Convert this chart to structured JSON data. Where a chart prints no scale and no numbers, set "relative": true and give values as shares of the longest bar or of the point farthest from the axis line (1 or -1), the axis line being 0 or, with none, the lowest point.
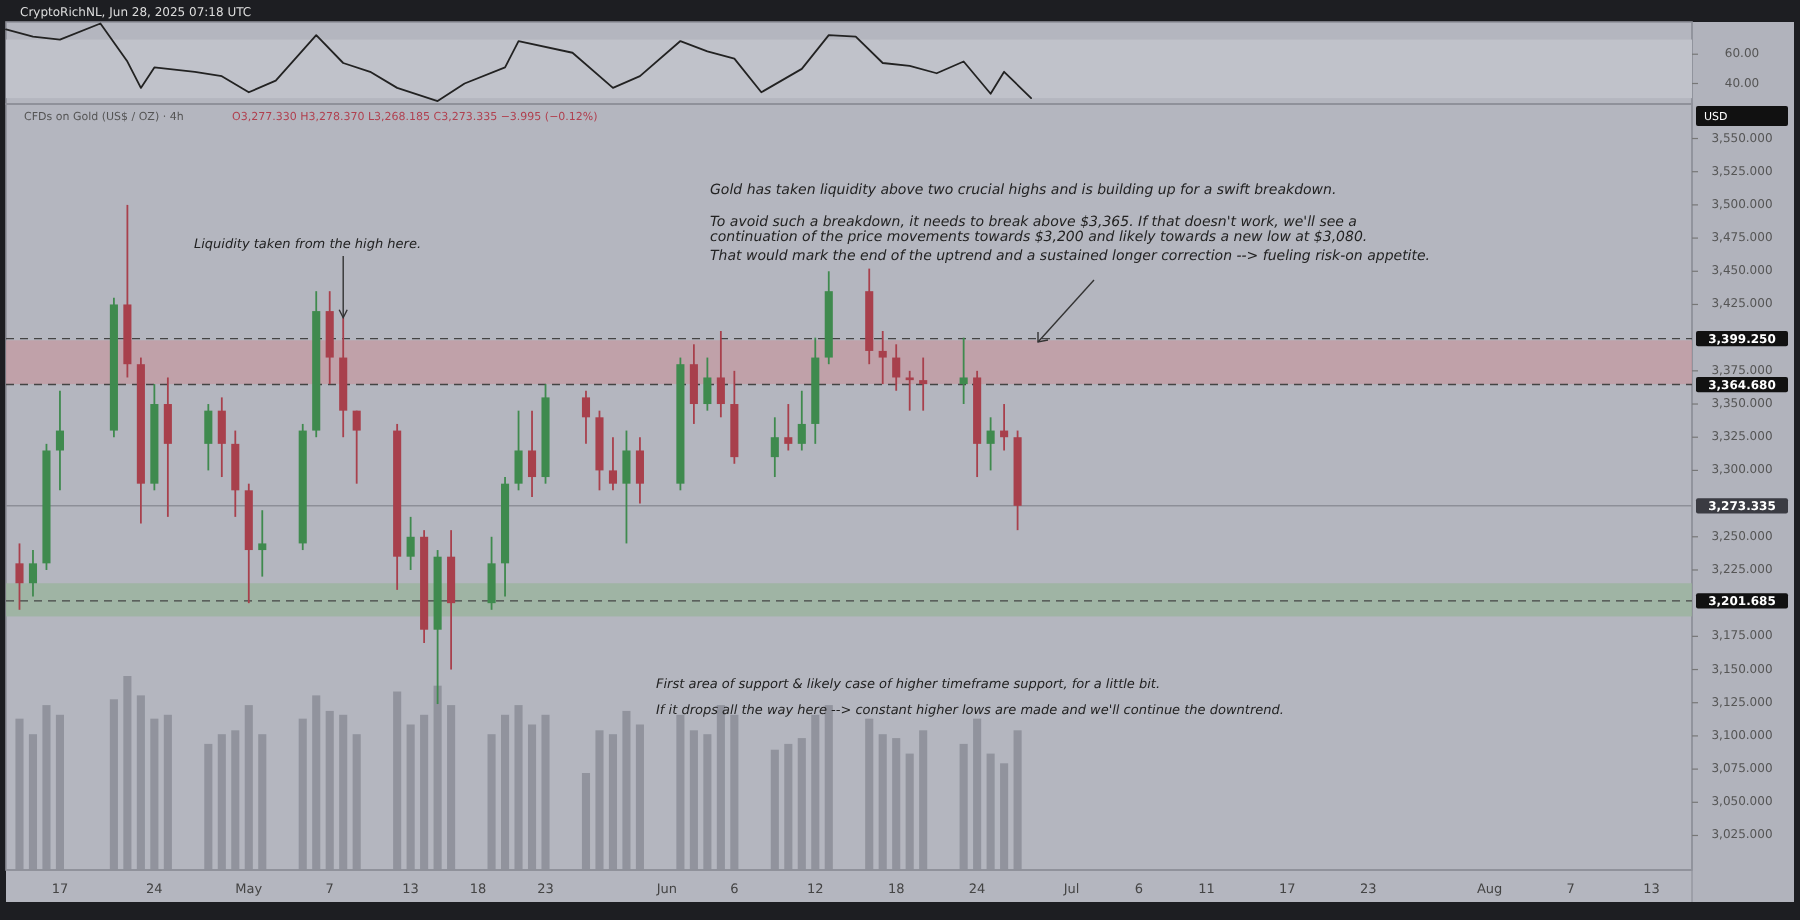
{
  "chart_data": [
    {
      "type": "line",
      "xlim": [
        "2025-04-13",
        "2025-08-16"
      ],
      "ylim": [
        26,
        82
      ],
      "yticks": [
        {
          "value": 40,
          "label": "40.00"
        },
        {
          "value": 60,
          "label": "60.00"
        }
      ],
      "tick_labels": "y",
      "bands": [
        {
          "axis": "y",
          "from": 30,
          "to": 70,
          "color": "#c0c2ca"
        }
      ],
      "series": [
        {
          "color": "#222222",
          "x": [
            "2025-04-13",
            "2025-04-15",
            "2025-04-17",
            "2025-04-20",
            "2025-04-22",
            "2025-04-23",
            "2025-04-24",
            "2025-04-27",
            "2025-04-29",
            "2025-05-01",
            "2025-05-03",
            "2025-05-06",
            "2025-05-08",
            "2025-05-10",
            "2025-05-12",
            "2025-05-15",
            "2025-05-17",
            "2025-05-20",
            "2025-05-21",
            "2025-05-25",
            "2025-05-28",
            "2025-05-30",
            "2025-06-02",
            "2025-06-04",
            "2025-06-06",
            "2025-06-08",
            "2025-06-11",
            "2025-06-13",
            "2025-06-15",
            "2025-06-17",
            "2025-06-19",
            "2025-06-21",
            "2025-06-23",
            "2025-06-25",
            "2025-06-26",
            "2025-06-28"
          ],
          "values": [
            77,
            72,
            70,
            81,
            55,
            37,
            51,
            48,
            45,
            34,
            42,
            73,
            54,
            48,
            37,
            28,
            40,
            51,
            69,
            61,
            37,
            45,
            69,
            62,
            57,
            34,
            50,
            73,
            72,
            54,
            52,
            47,
            55,
            33,
            48,
            30
          ]
        }
      ]
    },
    {
      "type": "candlestick",
      "title": "CFDs on Gold (US$ / OZ) · 4h",
      "subtitle": "O3,277.330 H3,278.370 L3,268.185 C3,273.335 −3.995 (−0.12%)",
      "ylabel": "USD",
      "xlim": [
        "2025-04-13",
        "2025-08-16"
      ],
      "ylim": [
        2999,
        3576
      ],
      "xticks": [
        {
          "value": "2025-04-17",
          "label": "17"
        },
        {
          "value": "2025-04-24",
          "label": "24"
        },
        {
          "value": "2025-05-01",
          "label": "May"
        },
        {
          "value": "2025-05-07",
          "label": "7"
        },
        {
          "value": "2025-05-13",
          "label": "13"
        },
        {
          "value": "2025-05-18",
          "label": "18"
        },
        {
          "value": "2025-05-23",
          "label": "23"
        },
        {
          "value": "2025-06-01",
          "label": "Jun"
        },
        {
          "value": "2025-06-06",
          "label": "6"
        },
        {
          "value": "2025-06-12",
          "label": "12"
        },
        {
          "value": "2025-06-18",
          "label": "18"
        },
        {
          "value": "2025-06-24",
          "label": "24"
        },
        {
          "value": "2025-07-01",
          "label": "Jul"
        },
        {
          "value": "2025-07-06",
          "label": "6"
        },
        {
          "value": "2025-07-11",
          "label": "11"
        },
        {
          "value": "2025-07-17",
          "label": "17"
        },
        {
          "value": "2025-07-23",
          "label": "23"
        },
        {
          "value": "2025-08-01",
          "label": "Aug"
        },
        {
          "value": "2025-08-07",
          "label": "7"
        },
        {
          "value": "2025-08-13",
          "label": "13"
        }
      ],
      "yticks": [
        {
          "value": 3025,
          "label": "3,025.000"
        },
        {
          "value": 3050,
          "label": "3,050.000"
        },
        {
          "value": 3075,
          "label": "3,075.000"
        },
        {
          "value": 3100,
          "label": "3,100.000"
        },
        {
          "value": 3125,
          "label": "3,125.000"
        },
        {
          "value": 3150,
          "label": "3,150.000"
        },
        {
          "value": 3175,
          "label": "3,175.000"
        },
        {
          "value": 3225,
          "label": "3,225.000"
        },
        {
          "value": 3250,
          "label": "3,250.000"
        },
        {
          "value": 3300,
          "label": "3,300.000"
        },
        {
          "value": 3325,
          "label": "3,325.000"
        },
        {
          "value": 3350,
          "label": "3,350.000"
        },
        {
          "value": 3375,
          "label": "3,375.000"
        },
        {
          "value": 3425,
          "label": "3,425.000"
        },
        {
          "value": 3450,
          "label": "3,450.000"
        },
        {
          "value": 3475,
          "label": "3,475.000"
        },
        {
          "value": 3500,
          "label": "3,500.000"
        },
        {
          "value": 3525,
          "label": "3,525.000"
        },
        {
          "value": 3550,
          "label": "3,550.000"
        }
      ],
      "ref_lines": [
        {
          "axis": "y",
          "value": 3399.25,
          "label": "3,399.250",
          "line_style": "dashed"
        },
        {
          "axis": "y",
          "value": 3364.68,
          "label": "3,364.680",
          "line_style": "dashed"
        },
        {
          "axis": "y",
          "value": 3273.335,
          "label": "3,273.335",
          "line_style": "solid"
        },
        {
          "axis": "y",
          "value": 3201.685,
          "label": "3,201.685",
          "line_style": "dashed"
        }
      ],
      "bands": [
        {
          "axis": "y",
          "from": 3365,
          "to": 3398,
          "color": "#c49aa2"
        },
        {
          "axis": "y",
          "from": 3190,
          "to": 3215,
          "color": "#98b39b"
        }
      ],
      "annotations": [
        "CryptoRichNL, Jun 28, 2025 07:18 UTC",
        {
          "text": "Liquidity taken from the high here.",
          "x": "2025-05-08",
          "y": 3415
        },
        "Gold has taken liquidity above two crucial highs and is building up for a swift breakdown.",
        "To avoid such a breakdown, it needs to break above $3,365. If that doesn't work, we'll see a continuation of the price movements towards $3,200 and likely towards a new low at $3,080.",
        "That would mark the end of the uptrend and a sustained longer correction --> fueling risk-on appetite.",
        "First area of support & likely case of higher timeframe support, for a little bit.",
        "If it drops all the way here --> constant higher lows are made and we'll continue the downtrend."
      ],
      "x": [
        "2025-04-14",
        "2025-04-15",
        "2025-04-16",
        "2025-04-17",
        "2025-04-21",
        "2025-04-22",
        "2025-04-23",
        "2025-04-24",
        "2025-04-25",
        "2025-04-28",
        "2025-04-29",
        "2025-04-30",
        "2025-05-01",
        "2025-05-02",
        "2025-05-05",
        "2025-05-06",
        "2025-05-07",
        "2025-05-08",
        "2025-05-09",
        "2025-05-12",
        "2025-05-13",
        "2025-05-14",
        "2025-05-15",
        "2025-05-16",
        "2025-05-19",
        "2025-05-20",
        "2025-05-21",
        "2025-05-22",
        "2025-05-23",
        "2025-05-26",
        "2025-05-27",
        "2025-05-28",
        "2025-05-29",
        "2025-05-30",
        "2025-06-02",
        "2025-06-03",
        "2025-06-04",
        "2025-06-05",
        "2025-06-06",
        "2025-06-09",
        "2025-06-10",
        "2025-06-11",
        "2025-06-12",
        "2025-06-13",
        "2025-06-16",
        "2025-06-17",
        "2025-06-18",
        "2025-06-19",
        "2025-06-20",
        "2025-06-23",
        "2025-06-24",
        "2025-06-25",
        "2025-06-26",
        "2025-06-27"
      ],
      "ohlc": [
        [
          3230,
          3245,
          3195,
          3215
        ],
        [
          3215,
          3240,
          3205,
          3230
        ],
        [
          3230,
          3320,
          3225,
          3315
        ],
        [
          3315,
          3360,
          3285,
          3330
        ],
        [
          3330,
          3430,
          3325,
          3425
        ],
        [
          3425,
          3500,
          3370,
          3380
        ],
        [
          3380,
          3385,
          3260,
          3290
        ],
        [
          3290,
          3365,
          3285,
          3350
        ],
        [
          3350,
          3370,
          3265,
          3320
        ],
        [
          3320,
          3350,
          3300,
          3345
        ],
        [
          3345,
          3355,
          3295,
          3320
        ],
        [
          3320,
          3330,
          3265,
          3285
        ],
        [
          3285,
          3290,
          3200,
          3240
        ],
        [
          3240,
          3270,
          3220,
          3245
        ],
        [
          3245,
          3335,
          3240,
          3330
        ],
        [
          3330,
          3435,
          3325,
          3420
        ],
        [
          3420,
          3435,
          3365,
          3385
        ],
        [
          3385,
          3415,
          3325,
          3345
        ],
        [
          3345,
          3345,
          3290,
          3330
        ],
        [
          3330,
          3335,
          3210,
          3235
        ],
        [
          3235,
          3265,
          3225,
          3250
        ],
        [
          3250,
          3255,
          3170,
          3180
        ],
        [
          3180,
          3240,
          3124,
          3235
        ],
        [
          3235,
          3255,
          3150,
          3200
        ],
        [
          3200,
          3250,
          3195,
          3230
        ],
        [
          3230,
          3295,
          3205,
          3290
        ],
        [
          3290,
          3345,
          3285,
          3315
        ],
        [
          3315,
          3345,
          3280,
          3295
        ],
        [
          3295,
          3365,
          3290,
          3355
        ],
        [
          3355,
          3360,
          3320,
          3340
        ],
        [
          3340,
          3345,
          3285,
          3300
        ],
        [
          3300,
          3325,
          3285,
          3290
        ],
        [
          3290,
          3330,
          3245,
          3315
        ],
        [
          3315,
          3325,
          3275,
          3290
        ],
        [
          3290,
          3385,
          3285,
          3380
        ],
        [
          3380,
          3395,
          3335,
          3350
        ],
        [
          3350,
          3385,
          3345,
          3370
        ],
        [
          3370,
          3405,
          3340,
          3350
        ],
        [
          3350,
          3375,
          3305,
          3310
        ],
        [
          3310,
          3340,
          3295,
          3325
        ],
        [
          3325,
          3350,
          3315,
          3320
        ],
        [
          3320,
          3360,
          3315,
          3335
        ],
        [
          3335,
          3400,
          3320,
          3385
        ],
        [
          3385,
          3450,
          3380,
          3435
        ],
        [
          3435,
          3452,
          3380,
          3390
        ],
        [
          3390,
          3405,
          3365,
          3385
        ],
        [
          3385,
          3395,
          3360,
          3370
        ],
        [
          3370,
          3375,
          3345,
          3368
        ],
        [
          3368,
          3385,
          3345,
          3365
        ],
        [
          3365,
          3400,
          3350,
          3370
        ],
        [
          3370,
          3375,
          3295,
          3320
        ],
        [
          3320,
          3340,
          3300,
          3330
        ],
        [
          3330,
          3350,
          3315,
          3325
        ],
        [
          3325,
          3330,
          3255,
          3273.335
        ]
      ],
      "colors": [
        "#a8404c",
        "#3f8a4e",
        "#3f8a4e",
        "#3f8a4e",
        "#3f8a4e",
        "#a8404c",
        "#a8404c",
        "#3f8a4e",
        "#a8404c",
        "#3f8a4e",
        "#a8404c",
        "#a8404c",
        "#a8404c",
        "#3f8a4e",
        "#3f8a4e",
        "#3f8a4e",
        "#a8404c",
        "#a8404c",
        "#a8404c",
        "#a8404c",
        "#3f8a4e",
        "#a8404c",
        "#3f8a4e",
        "#a8404c",
        "#3f8a4e",
        "#3f8a4e",
        "#3f8a4e",
        "#a8404c",
        "#3f8a4e",
        "#a8404c",
        "#a8404c",
        "#a8404c",
        "#3f8a4e",
        "#a8404c",
        "#3f8a4e",
        "#a8404c",
        "#3f8a4e",
        "#a8404c",
        "#a8404c",
        "#3f8a4e",
        "#a8404c",
        "#3f8a4e",
        "#3f8a4e",
        "#3f8a4e",
        "#a8404c",
        "#a8404c",
        "#a8404c",
        "#a8404c",
        "#a8404c",
        "#3f8a4e",
        "#a8404c",
        "#3f8a4e",
        "#a8404c",
        "#a8404c"
      ]
    },
    {
      "type": "bar",
      "relative": true,
      "tick_labels": false,
      "xlim": [
        "2025-04-13",
        "2025-08-16"
      ],
      "color": "#8b8d97",
      "x": [
        "2025-04-14",
        "2025-04-15",
        "2025-04-16",
        "2025-04-17",
        "2025-04-21",
        "2025-04-22",
        "2025-04-23",
        "2025-04-24",
        "2025-04-25",
        "2025-04-28",
        "2025-04-29",
        "2025-04-30",
        "2025-05-01",
        "2025-05-02",
        "2025-05-05",
        "2025-05-06",
        "2025-05-07",
        "2025-05-08",
        "2025-05-09",
        "2025-05-12",
        "2025-05-13",
        "2025-05-14",
        "2025-05-15",
        "2025-05-16",
        "2025-05-19",
        "2025-05-20",
        "2025-05-21",
        "2025-05-22",
        "2025-05-23",
        "2025-05-26",
        "2025-05-27",
        "2025-05-28",
        "2025-05-29",
        "2025-05-30",
        "2025-06-02",
        "2025-06-03",
        "2025-06-04",
        "2025-06-05",
        "2025-06-06",
        "2025-06-09",
        "2025-06-10",
        "2025-06-11",
        "2025-06-12",
        "2025-06-13",
        "2025-06-16",
        "2025-06-17",
        "2025-06-18",
        "2025-06-19",
        "2025-06-20",
        "2025-06-23",
        "2025-06-24",
        "2025-06-25",
        "2025-06-26",
        "2025-06-27"
      ],
      "values": [
        0.78,
        0.7,
        0.85,
        0.8,
        0.88,
        1,
        0.9,
        0.78,
        0.8,
        0.65,
        0.7,
        0.72,
        0.85,
        0.7,
        0.78,
        0.9,
        0.82,
        0.8,
        0.7,
        0.92,
        0.75,
        0.8,
        0.95,
        0.85,
        0.7,
        0.8,
        0.85,
        0.75,
        0.8,
        0.5,
        0.72,
        0.7,
        0.82,
        0.75,
        0.8,
        0.72,
        0.7,
        0.85,
        0.8,
        0.62,
        0.65,
        0.68,
        0.8,
        0.85,
        0.78,
        0.7,
        0.68,
        0.6,
        0.72,
        0.65,
        0.78,
        0.6,
        0.55,
        0.72
      ]
    }
  ]
}
